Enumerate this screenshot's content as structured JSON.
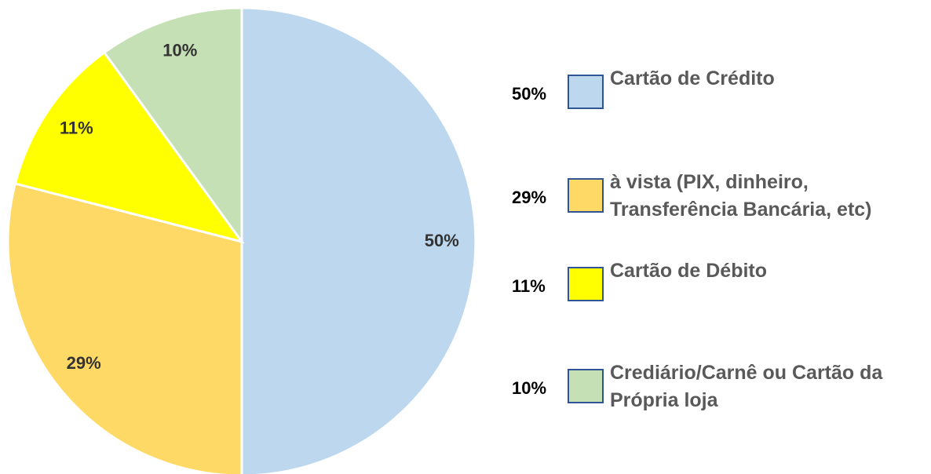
{
  "chart_data": {
    "type": "pie",
    "categories": [
      "Cartão de Crédito",
      "à vista (PIX, dinheiro, Transferência Bancária, etc)",
      "Cartão de Débito",
      "Crediário/Carnê ou Cartão da Própria loja"
    ],
    "values": [
      50,
      29,
      11,
      10
    ],
    "value_labels": [
      "50%",
      "29%",
      "11%",
      "10%"
    ],
    "colors": [
      "#bdd7ee",
      "#ffd966",
      "#ffff00",
      "#c5e0b4"
    ],
    "legend": "right"
  }
}
